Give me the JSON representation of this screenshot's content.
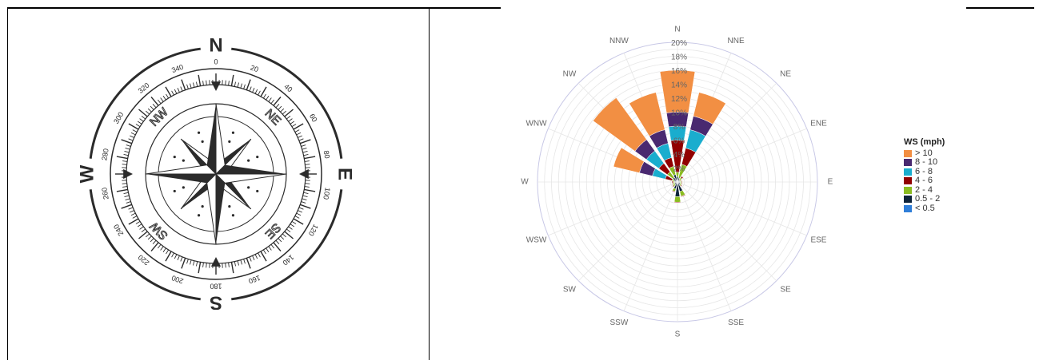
{
  "compass": {
    "cardinals": [
      "N",
      "E",
      "S",
      "W"
    ],
    "intercardinals": [
      "NE",
      "SE",
      "SW",
      "NW"
    ],
    "degree_labels": [
      "0",
      "20",
      "40",
      "60",
      "80",
      "100",
      "120",
      "140",
      "160",
      "180",
      "200",
      "220",
      "240",
      "260",
      "280",
      "300",
      "320",
      "340"
    ]
  },
  "chart_data": {
    "type": "windrose",
    "directions": [
      "N",
      "NNE",
      "NE",
      "ENE",
      "E",
      "ESE",
      "SE",
      "SSE",
      "S",
      "SSW",
      "SW",
      "WSW",
      "W",
      "WNW",
      "NW",
      "NNW"
    ],
    "radial_axis": {
      "ticks": [
        "2%",
        "4%",
        "6%",
        "8%",
        "10%",
        "12%",
        "14%",
        "16%",
        "18%",
        "20%"
      ],
      "range": [
        0,
        20
      ],
      "unit": "%"
    },
    "grid": true,
    "legend_title": "WS (mph)",
    "legend_position": "right",
    "series": [
      {
        "name": "< 0.5",
        "color": "#2f7ed8",
        "values": [
          0.3,
          0.2,
          0.1,
          0.1,
          0.1,
          0.1,
          0.1,
          0.2,
          0.3,
          0.2,
          0.1,
          0.1,
          0.1,
          0.1,
          0.2,
          0.3
        ]
      },
      {
        "name": "0.5 - 2",
        "color": "#0d233a",
        "values": [
          0.5,
          0.4,
          0.3,
          0.2,
          0.3,
          0.3,
          0.4,
          1.2,
          1.8,
          0.8,
          0.4,
          0.3,
          0.3,
          0.4,
          0.6,
          0.8
        ]
      },
      {
        "name": "2 - 4",
        "color": "#8bbc21",
        "values": [
          0.6,
          2.0,
          0.4,
          0.2,
          0.2,
          0.2,
          0.2,
          0.7,
          0.8,
          0.4,
          0.3,
          0.3,
          0.2,
          0.3,
          1.0,
          1.2
        ]
      },
      {
        "name": "4 - 6",
        "color": "#910000",
        "values": [
          4.6,
          2.4,
          0.2,
          0.1,
          0.1,
          0.1,
          0.1,
          0.1,
          0.1,
          0.1,
          0.1,
          0.1,
          0.2,
          1.0,
          1.5,
          1.3
        ]
      },
      {
        "name": "6 - 8",
        "color": "#1aadce",
        "values": [
          2.0,
          2.7,
          0.0,
          0.0,
          0.0,
          0.0,
          0.0,
          0.0,
          0.0,
          0.0,
          0.0,
          0.0,
          0.0,
          1.9,
          2.2,
          2.1
        ]
      },
      {
        "name": "8 - 10",
        "color": "#492970",
        "values": [
          2.0,
          2.0,
          0.0,
          0.0,
          0.0,
          0.0,
          0.0,
          0.0,
          0.0,
          0.0,
          0.0,
          0.0,
          0.0,
          1.9,
          2.0,
          2.0
        ]
      },
      {
        "name": "> 10",
        "color": "#f28f43",
        "values": [
          6.0,
          3.5,
          0.0,
          0.0,
          0.0,
          0.0,
          0.0,
          0.0,
          0.0,
          0.0,
          0.0,
          0.0,
          0.0,
          3.8,
          7.4,
          5.5
        ]
      }
    ]
  }
}
